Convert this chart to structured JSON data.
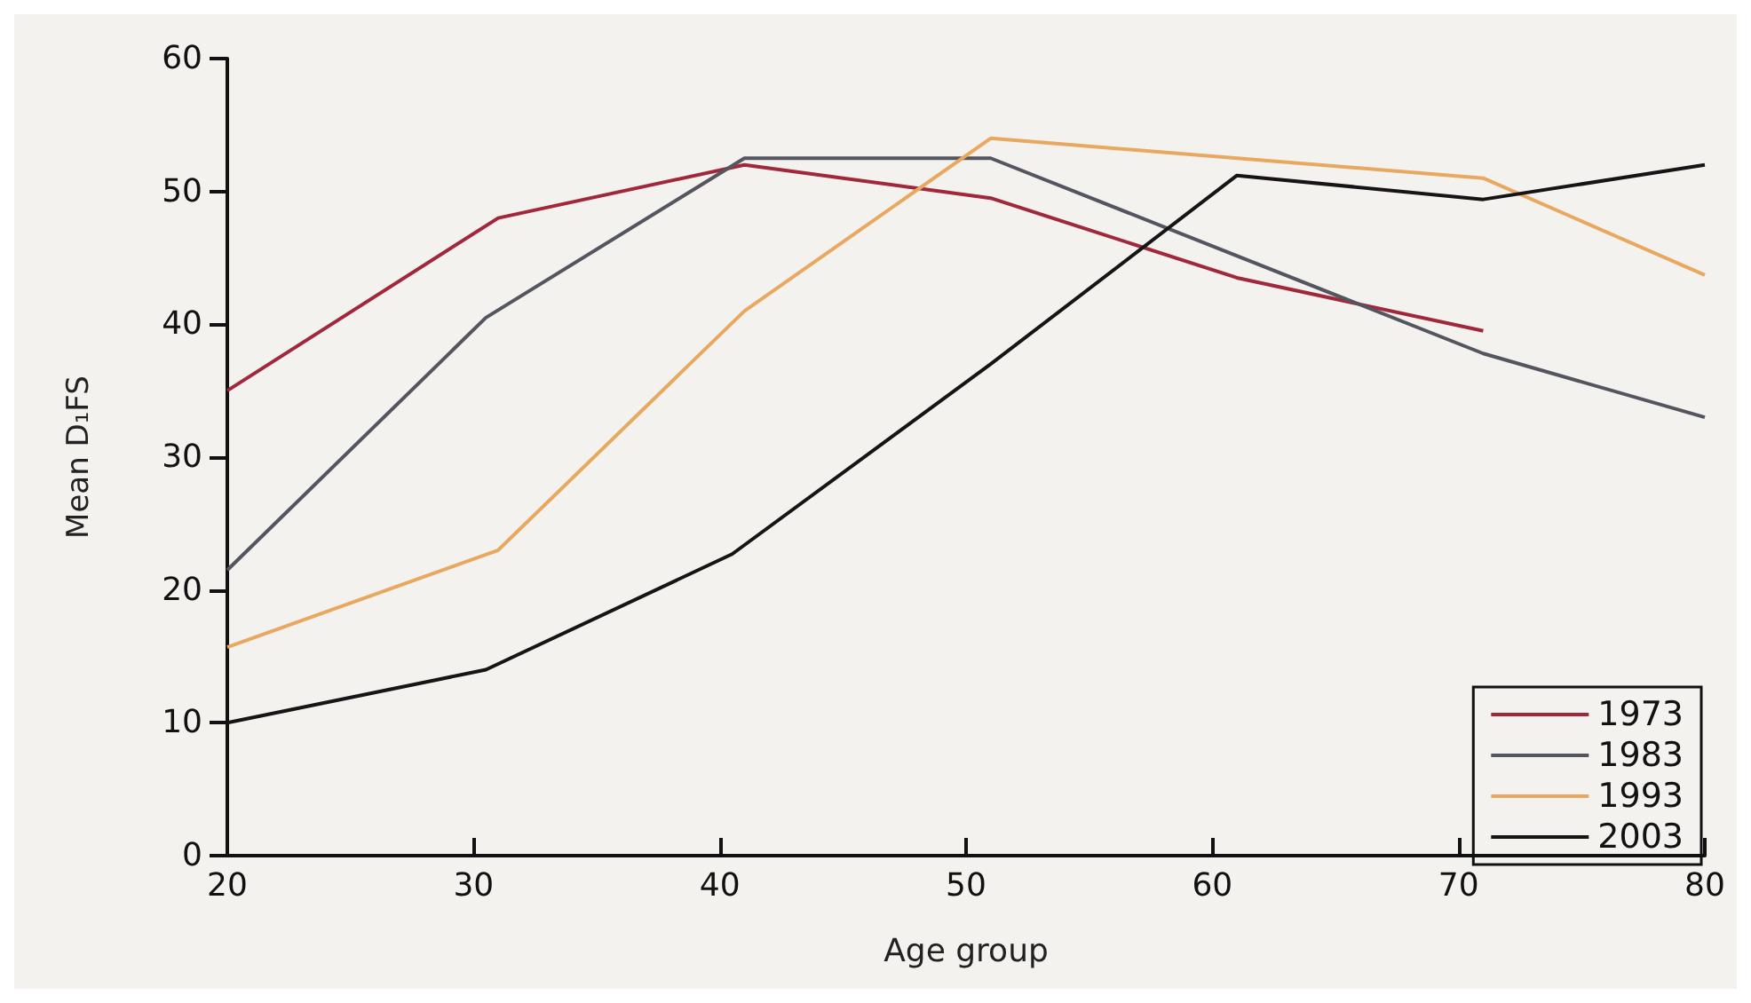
{
  "chart_data": {
    "type": "line",
    "xlabel": "Age group",
    "ylabel": "Mean D₁FS",
    "xlim": [
      20,
      80
    ],
    "xticks": [
      20,
      30,
      40,
      50,
      60,
      70,
      80
    ],
    "ylim": [
      0,
      60
    ],
    "yticks": [
      0,
      10,
      20,
      30,
      40,
      50,
      60
    ],
    "grid": false,
    "legend": "bottom right",
    "marker": "none",
    "line_style": "solid",
    "series": [
      {
        "name": "1973",
        "color": "#a0283a",
        "x": [
          20,
          31,
          41,
          51,
          61,
          71
        ],
        "values": [
          35,
          48,
          52,
          49.5,
          43.5,
          39.5
        ]
      },
      {
        "name": "1983",
        "color": "#555560",
        "x": [
          20,
          30.5,
          41,
          51,
          71,
          80
        ],
        "values": [
          21.5,
          40.5,
          52.5,
          52.5,
          37.8,
          33
        ]
      },
      {
        "name": "1993",
        "color": "#e8a860",
        "x": [
          20,
          31,
          41,
          51,
          71,
          80
        ],
        "values": [
          15.7,
          23,
          41,
          54,
          51,
          43.7
        ]
      },
      {
        "name": "2003",
        "color": "#151515",
        "x": [
          20,
          30.5,
          40.5,
          51,
          61,
          71,
          80
        ],
        "values": [
          10,
          14,
          22.7,
          37,
          51.2,
          49.4,
          52
        ]
      }
    ]
  }
}
